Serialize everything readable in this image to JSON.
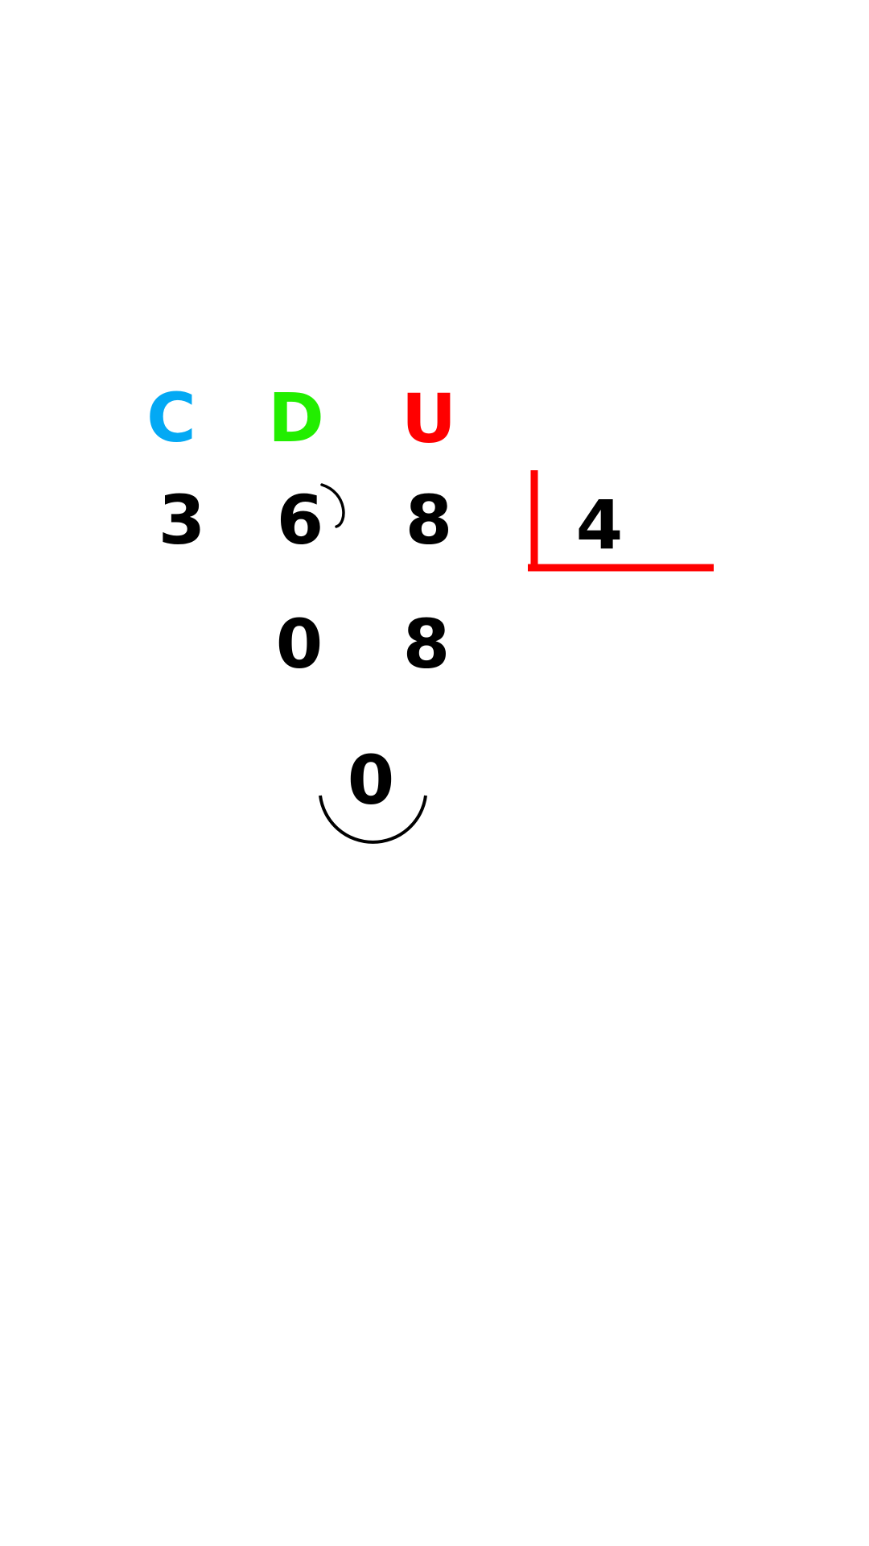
{
  "headers": {
    "c": "C",
    "d": "D",
    "u": "U"
  },
  "dividend": {
    "c": "3",
    "d": "6",
    "u": "8"
  },
  "divisor": "4",
  "partial": {
    "d": "0",
    "u": "8"
  },
  "remainder": "0",
  "colors": {
    "c": "#03a9f4",
    "d": "#22ee00",
    "u": "#ff0000",
    "bracket": "#ff0000",
    "ink": "#000000"
  }
}
